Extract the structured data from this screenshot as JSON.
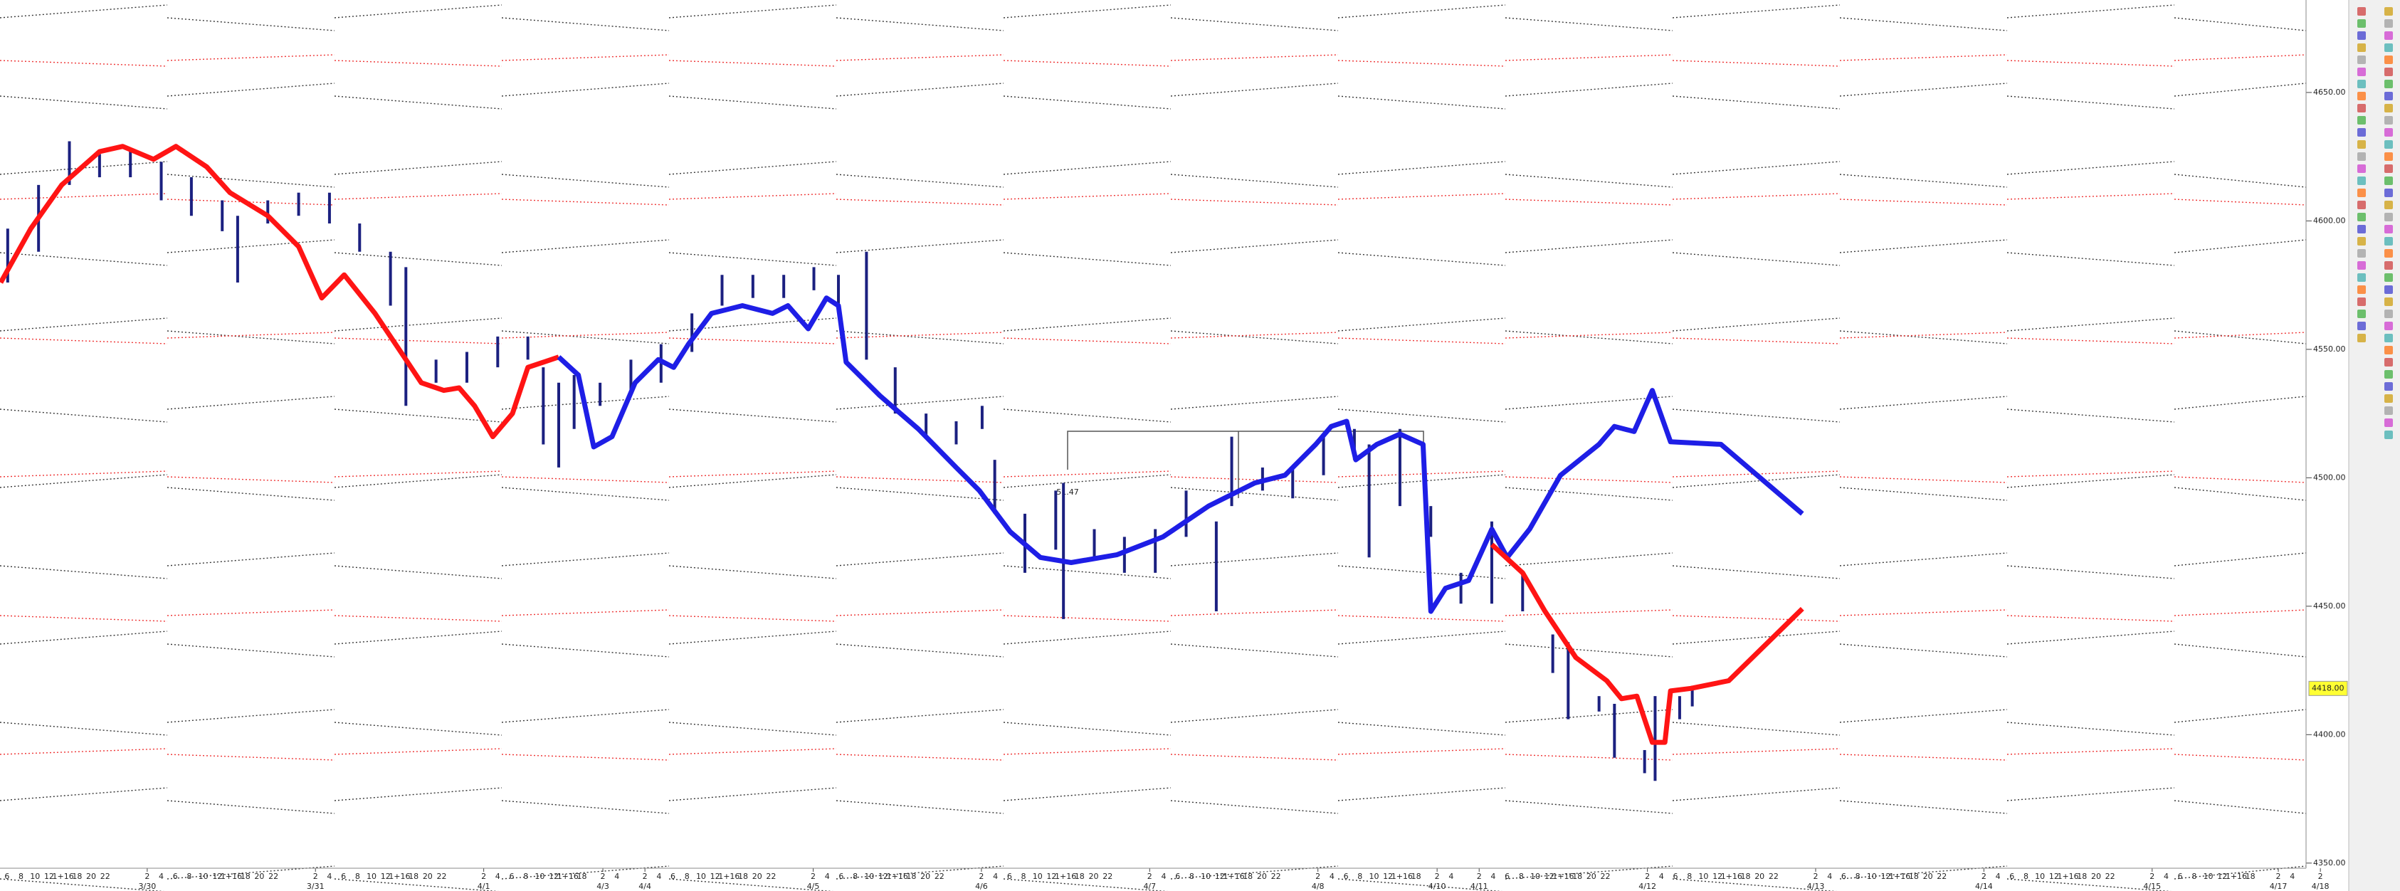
{
  "chart_data": {
    "type": "ohlc",
    "xlim": [
      -21,
      311
    ],
    "ylim": [
      4348,
      4686
    ],
    "yticks": [
      {
        "value": 4350,
        "label": "4350.00"
      },
      {
        "value": 4400,
        "label": "4400.00"
      },
      {
        "value": 4450,
        "label": "4450.00"
      },
      {
        "value": 4500,
        "label": "4500.00"
      },
      {
        "value": 4550,
        "label": "4550.00"
      },
      {
        "value": 4600,
        "label": "4600.00"
      },
      {
        "value": 4650,
        "label": "4650.00"
      }
    ],
    "xticks": [
      {
        "value": 0,
        "label": "3/30"
      },
      {
        "value": 24,
        "label": "3/31"
      },
      {
        "value": 48,
        "label": "4/1"
      },
      {
        "value": 65,
        "label": "4/3"
      },
      {
        "value": 71,
        "label": "4/4"
      },
      {
        "value": 95,
        "label": "4/5"
      },
      {
        "value": 119,
        "label": "4/6"
      },
      {
        "value": 143,
        "label": "4/7"
      },
      {
        "value": 167,
        "label": "4/8"
      },
      {
        "value": 184,
        "label": "4/10"
      },
      {
        "value": 190,
        "label": "4/11"
      },
      {
        "value": 214,
        "label": "4/12"
      },
      {
        "value": 238,
        "label": "4/13"
      },
      {
        "value": 262,
        "label": "4/14"
      },
      {
        "value": 286,
        "label": "4/15"
      },
      {
        "value": 304,
        "label": "4/17"
      },
      {
        "value": 310,
        "label": "4/18"
      }
    ],
    "hour_labels": [
      "2",
      "4",
      "6",
      "8",
      "10",
      "12",
      "1+16",
      "18",
      "20",
      "22"
    ],
    "last_price": {
      "value": 4418,
      "label": "4418.00"
    },
    "annotations": [
      {
        "text": "51.47"
      }
    ],
    "bars": {
      "color": "#1b2080",
      "x": [
        -19.9,
        -15.5,
        -11.1,
        -6.8,
        -2.4,
        2.0,
        6.3,
        10.7,
        12.9,
        17.2,
        21.6,
        26.0,
        30.3,
        34.7,
        36.9,
        41.2,
        45.6,
        50.0,
        54.3,
        56.5,
        58.7,
        60.9,
        64.6,
        69.0,
        73.3,
        77.7,
        82.0,
        86.4,
        90.8,
        95.1,
        98.6,
        102.6,
        106.7,
        111.1,
        115.4,
        119.1,
        120.9,
        125.2,
        129.6,
        130.7,
        135.1,
        139.4,
        143.8,
        148.2,
        152.5,
        154.7,
        159.1,
        163.4,
        167.8,
        172.2,
        174.3,
        178.7,
        183.1,
        187.4,
        191.8,
        196.2,
        200.5,
        202.7,
        207.1,
        209.3,
        213.6,
        215.1,
        218.6,
        220.4
      ],
      "high": [
        4597,
        4614,
        4631,
        4626,
        4627,
        4623,
        4617,
        4608,
        4602,
        4608,
        4611,
        4611,
        4599,
        4588,
        4582,
        4546,
        4549,
        4555,
        4555,
        4543,
        4537,
        4540,
        4537,
        4546,
        4552,
        4564,
        4579,
        4579,
        4579,
        4582,
        4579,
        4588,
        4543,
        4525,
        4522,
        4528,
        4507,
        4486,
        4495,
        4498,
        4480,
        4477,
        4480,
        4495,
        4483,
        4516,
        4504,
        4504,
        4516,
        4519,
        4513,
        4519,
        4489,
        4463,
        4483,
        4463,
        4439,
        4436,
        4415,
        4412,
        4394,
        4415,
        4415,
        4419
      ],
      "low": [
        4576,
        4588,
        4614,
        4617,
        4617,
        4608,
        4602,
        4596,
        4576,
        4599,
        4602,
        4599,
        4588,
        4567,
        4528,
        4537,
        4537,
        4543,
        4546,
        4513,
        4504,
        4519,
        4528,
        4534,
        4537,
        4549,
        4567,
        4570,
        4570,
        4573,
        4564,
        4546,
        4525,
        4516,
        4513,
        4519,
        4486,
        4463,
        4472,
        4445,
        4469,
        4463,
        4463,
        4477,
        4448,
        4489,
        4495,
        4492,
        4501,
        4507,
        4469,
        4489,
        4477,
        4451,
        4451,
        4448,
        4424,
        4406,
        4409,
        4391,
        4385,
        4382,
        4406,
        4411
      ]
    },
    "series": [
      {
        "color": "#ff1414",
        "x": [
          -20.9,
          -16.6,
          -12.2,
          -6.8,
          -3.5,
          0.9,
          4.1,
          8.5,
          11.8,
          17.2,
          21.6,
          24.9,
          28.1,
          32.5,
          36.9,
          39.1,
          42.3,
          44.5,
          46.7,
          49.3,
          52.1,
          54.3,
          58.7
        ],
        "values": [
          4576,
          4597,
          4614,
          4627,
          4629,
          4624,
          4629,
          4621,
          4611,
          4602,
          4590,
          4570,
          4579,
          4564,
          4546,
          4537,
          4534,
          4535,
          4528,
          4516,
          4525,
          4543,
          4547
        ]
      },
      {
        "color": "#1e1ee6",
        "x": [
          58.7,
          61.5,
          63.7,
          66.3,
          69.6,
          72.9,
          75.1,
          77.2,
          80.5,
          84.9,
          89.2,
          91.4,
          94.3,
          96.9,
          98.6,
          99.7,
          104.5,
          110.0,
          115.4,
          118.7,
          123.1,
          127.4,
          131.8,
          138.3,
          144.9,
          151.4,
          158.0,
          162.3,
          166.7,
          168.9,
          171.1,
          172.4,
          175.4,
          178.7,
          182.0,
          183.1,
          185.2,
          188.5,
          191.8,
          194.0,
          197.2,
          201.6,
          207.1,
          209.3,
          212.1,
          214.7,
          217.3,
          224.5,
          236.1
        ],
        "values": [
          4547,
          4540,
          4512,
          4516,
          4537,
          4546,
          4543,
          4552,
          4564,
          4567,
          4564,
          4567,
          4558,
          4570,
          4567,
          4545,
          4532,
          4519,
          4504,
          4495,
          4479,
          4469,
          4467,
          4470,
          4477,
          4489,
          4498,
          4501,
          4513,
          4520,
          4522,
          4507,
          4513,
          4517,
          4513,
          4448,
          4457,
          4460,
          4480,
          4469,
          4480,
          4501,
          4513,
          4520,
          4518,
          4534,
          4514,
          4513,
          4486
        ]
      },
      {
        "color": "#ff1414",
        "x": [
          191.8,
          196.2,
          199.4,
          203.8,
          208.2,
          210.3,
          212.5,
          214.7,
          216.5,
          217.3,
          220.2,
          225.6,
          236.1
        ],
        "values": [
          4474,
          4463,
          4448,
          4430,
          4421,
          4414,
          4415,
          4397,
          4397,
          4417,
          4418,
          4421,
          4449
        ]
      }
    ]
  }
}
